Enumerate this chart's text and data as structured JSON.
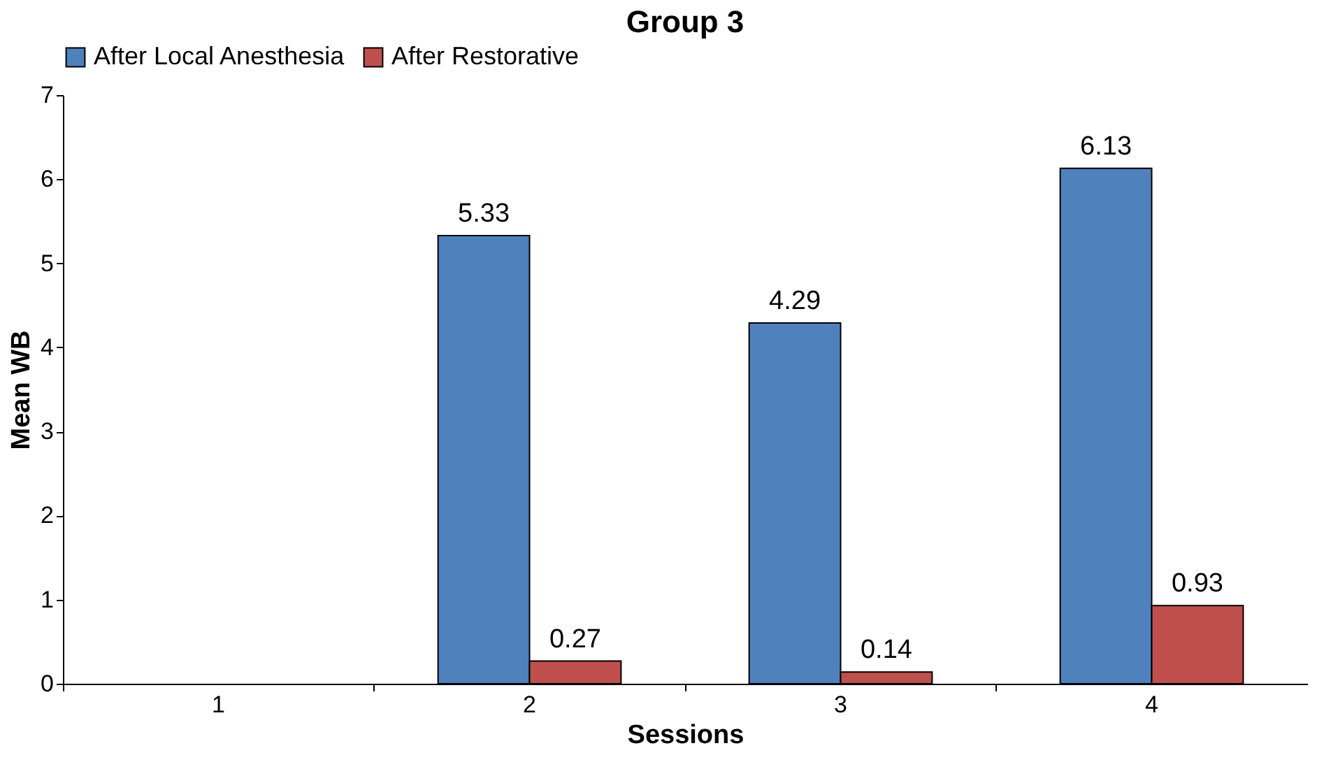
{
  "chart_data": {
    "type": "bar",
    "title": "Group 3",
    "xlabel": "Sessions",
    "ylabel": "Mean WB",
    "categories": [
      "1",
      "2",
      "3",
      "4"
    ],
    "series": [
      {
        "name": "After Local Anesthesia",
        "color": "#4f81bd",
        "values": [
          null,
          5.33,
          4.29,
          6.13
        ]
      },
      {
        "name": "After Restorative",
        "color": "#c0504d",
        "values": [
          null,
          0.27,
          0.14,
          0.93
        ]
      }
    ],
    "ylim": [
      0,
      7
    ],
    "yticks": [
      0,
      1,
      2,
      3,
      4,
      5,
      6,
      7
    ],
    "grid": false,
    "legend": "top",
    "data_labels": true
  }
}
